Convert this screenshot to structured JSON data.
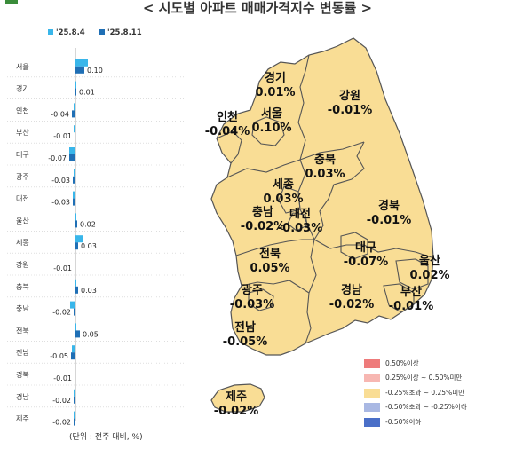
{
  "title": "< 시도별 아파트 매매가격지수 변동률 >",
  "unit_note": "(단위 : 전주 대비, %)",
  "colors": {
    "series_prev": "#39b6ea",
    "series_curr": "#1f6fb5",
    "map_fill": "#f9dd95",
    "map_border": "#555555"
  },
  "chart_data": {
    "type": "bar",
    "orientation": "horizontal",
    "categories": [
      "서울",
      "경기",
      "인천",
      "부산",
      "대구",
      "광주",
      "대전",
      "울산",
      "세종",
      "강원",
      "충북",
      "충남",
      "전북",
      "전남",
      "경북",
      "경남",
      "제주"
    ],
    "series": [
      {
        "name": "'25.8.4",
        "values": [
          0.14,
          0.0,
          -0.02,
          -0.02,
          -0.07,
          -0.02,
          -0.03,
          0.0,
          0.08,
          -0.01,
          0.0,
          -0.06,
          0.0,
          -0.04,
          -0.01,
          -0.02,
          -0.02
        ]
      },
      {
        "name": "'25.8.11",
        "values": [
          0.1,
          0.01,
          -0.04,
          -0.01,
          -0.07,
          -0.03,
          -0.03,
          0.02,
          0.03,
          -0.01,
          0.03,
          -0.02,
          0.05,
          -0.05,
          -0.01,
          -0.02,
          -0.02
        ]
      }
    ],
    "data_labels": [
      "0.10",
      "0.01",
      "-0.04",
      "-0.01",
      "-0.07",
      "-0.03",
      "-0.03",
      "0.02",
      "0.03",
      "-0.01",
      "0.03",
      "-0.02",
      "0.05",
      "-0.05",
      "-0.01",
      "-0.02",
      "-0.02"
    ]
  },
  "map": {
    "regions": [
      {
        "name": "경기",
        "value": "0.01%"
      },
      {
        "name": "강원",
        "value": "-0.01%"
      },
      {
        "name": "인천",
        "value": "-0.04%"
      },
      {
        "name": "서울",
        "value": "0.10%"
      },
      {
        "name": "충북",
        "value": "0.03%"
      },
      {
        "name": "세종",
        "value": "0.03%"
      },
      {
        "name": "경북",
        "value": "-0.01%"
      },
      {
        "name": "충남",
        "value": "-0.02%"
      },
      {
        "name": "대전",
        "value": "-0.03%"
      },
      {
        "name": "대구",
        "value": "-0.07%"
      },
      {
        "name": "울산",
        "value": "0.02%"
      },
      {
        "name": "전북",
        "value": "0.05%"
      },
      {
        "name": "경남",
        "value": "-0.02%"
      },
      {
        "name": "부산",
        "value": "-0.01%"
      },
      {
        "name": "광주",
        "value": "-0.03%"
      },
      {
        "name": "전남",
        "value": "-0.05%"
      },
      {
        "name": "제주",
        "value": "-0.02%"
      }
    ]
  },
  "legend": [
    {
      "label": "0.50%이상",
      "color": "#ee7b7b"
    },
    {
      "label": "0.25%이상 ~ 0.50%미만",
      "color": "#f7b7b2"
    },
    {
      "label": "-0.25%초과 ~ 0.25%미만",
      "color": "#f9dd95"
    },
    {
      "label": "-0.50%초과 ~ -0.25%이하",
      "color": "#a9b8e3"
    },
    {
      "label": "-0.50%이하",
      "color": "#4a6fc8"
    }
  ]
}
